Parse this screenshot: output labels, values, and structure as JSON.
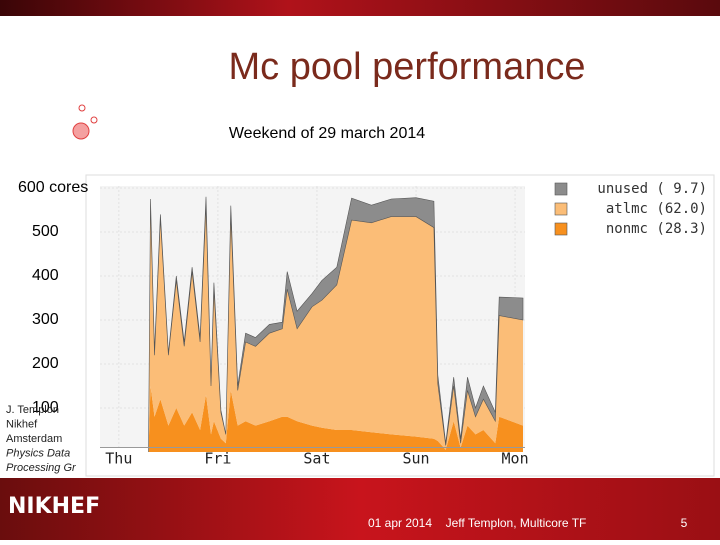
{
  "slide": {
    "title": "Mc pool performance",
    "subtitle": "Weekend of 29 march 2014",
    "side_text": [
      "J. Templon",
      "Nikhef",
      "Amsterdam",
      "Physics Data",
      "Processing Gr"
    ],
    "logo": "NIKHEF",
    "footer_date": "01 apr 2014",
    "footer_author": "Jeff Templon, Multicore TF",
    "page_number": "5"
  },
  "chart_data": {
    "type": "stacked_area",
    "x": [
      0.3,
      0.32,
      0.36,
      0.42,
      0.5,
      0.58,
      0.66,
      0.74,
      0.82,
      0.88,
      0.93,
      0.96,
      1.03,
      1.08,
      1.13,
      1.2,
      1.28,
      1.38,
      1.52,
      1.65,
      1.7,
      1.8,
      1.95,
      2.05,
      2.2,
      2.35,
      2.55,
      2.75,
      3.0,
      3.18,
      3.22,
      3.3,
      3.38,
      3.45,
      3.52,
      3.6,
      3.68,
      3.8,
      3.84,
      4.08
    ],
    "xlim": [
      -0.19,
      4.1
    ],
    "xticks": [
      {
        "value": 0,
        "label": "Thu"
      },
      {
        "value": 1,
        "label": "Fri"
      },
      {
        "value": 2,
        "label": "Sat"
      },
      {
        "value": 3,
        "label": "Sun"
      },
      {
        "value": 4,
        "label": "Mon"
      }
    ],
    "ylim": [
      0,
      600
    ],
    "yticks": [
      {
        "value": 600,
        "label": "600 cores"
      },
      500,
      400,
      300,
      200,
      100
    ],
    "grid": true,
    "legend": "top-right",
    "series": [
      {
        "name": "nonmc (28.3)",
        "color": "#f7901e",
        "values": [
          0,
          150,
          80,
          120,
          60,
          100,
          60,
          90,
          50,
          130,
          40,
          70,
          30,
          20,
          140,
          60,
          70,
          60,
          70,
          80,
          80,
          70,
          60,
          55,
          50,
          50,
          45,
          40,
          35,
          30,
          25,
          5,
          70,
          10,
          60,
          40,
          50,
          20,
          80,
          60
        ]
      },
      {
        "name": "atlmc (62.0)",
        "color": "#fbbd77",
        "values": [
          0,
          420,
          140,
          410,
          160,
          290,
          180,
          320,
          200,
          430,
          110,
          300,
          60,
          20,
          400,
          80,
          180,
          180,
          200,
          200,
          290,
          210,
          270,
          290,
          330,
          477,
          476,
          495,
          500,
          480,
          130,
          10,
          80,
          10,
          80,
          40,
          70,
          50,
          230,
          240
        ]
      },
      {
        "name": "unused ( 9.7)",
        "color": "#8c8c8c",
        "values": [
          0,
          5,
          10,
          10,
          5,
          10,
          10,
          10,
          10,
          20,
          10,
          15,
          5,
          0,
          20,
          10,
          20,
          20,
          20,
          15,
          40,
          40,
          30,
          45,
          40,
          50,
          40,
          40,
          43,
          60,
          20,
          5,
          20,
          10,
          30,
          20,
          30,
          20,
          42,
          50
        ]
      }
    ]
  }
}
